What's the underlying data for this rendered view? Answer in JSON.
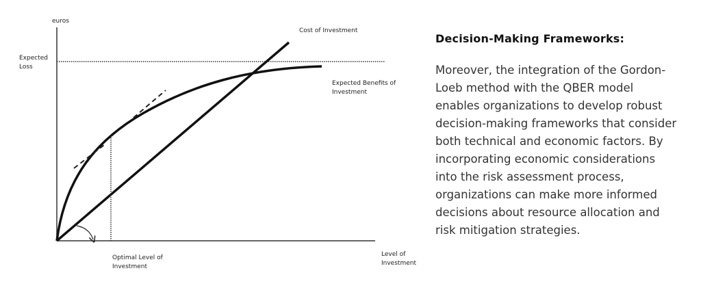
{
  "diagram": {
    "y_axis_label": "euros",
    "expected_loss_label": [
      "Expected",
      "Loss"
    ],
    "cost_label": "Cost of Investment",
    "benefit_label": [
      "Expected Benefits of",
      "Investment"
    ],
    "optimal_label": [
      "Optimal Level of",
      "Investment"
    ],
    "x_axis_label": [
      "Level of",
      "Investment"
    ]
  },
  "text": {
    "heading": "Decision-Making Frameworks:",
    "paragraph": [
      "Moreover, the integration of the Gordon-",
      "Loeb method with the QBER model",
      "enables organizations to develop robust",
      "decision-making frameworks that consider",
      "both technical and economic factors. By",
      "incorporating economic considerations",
      "into the risk assessment process,",
      "organizations can make more informed",
      "decisions about resource allocation and",
      "risk mitigation strategies."
    ]
  }
}
